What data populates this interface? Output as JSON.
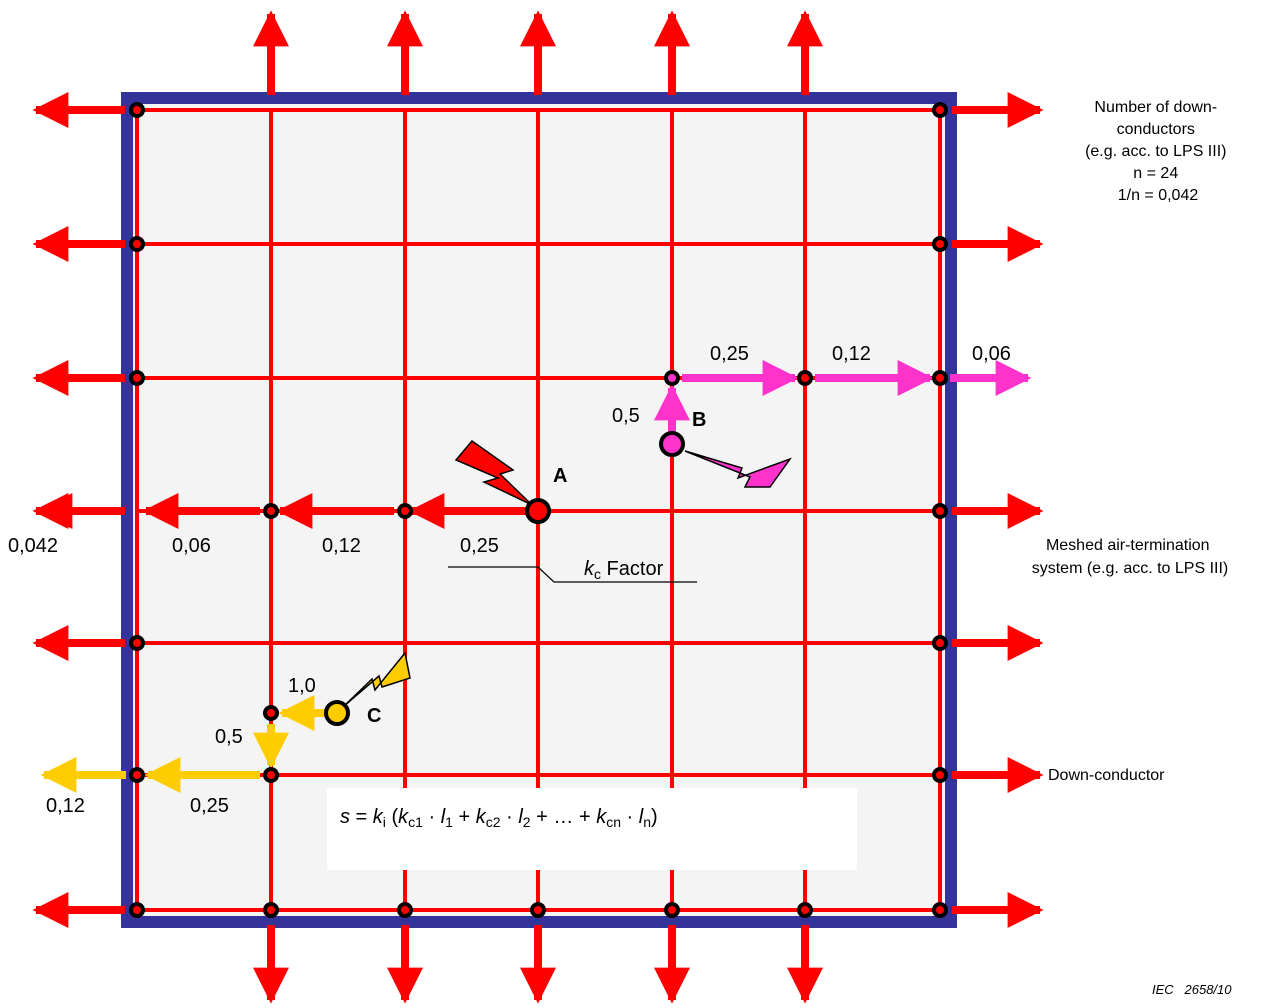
{
  "colors": {
    "roof_fill": "#f4f4f4",
    "roof_border": "#333399",
    "conductor": "#ff0000",
    "path_b": "#ff33cc",
    "path_c": "#ffcc00"
  },
  "notes": {
    "downconductors": [
      "Number of down-",
      "conductors",
      "(e.g. acc. to LPS III)",
      "n = 24",
      "1/n = 0,042"
    ],
    "meshed": [
      "Meshed air-termination",
      "system (e.g. acc. to LPS III)"
    ],
    "downconductor": "Down-conductor",
    "figure_ref": "IEC   2658/10"
  },
  "points": {
    "a": "A",
    "b": "B",
    "c": "C"
  },
  "path_a_values": {
    "v1": "0,25",
    "v2": "0,12",
    "v3": "0,06",
    "v4": "0,042"
  },
  "path_b_values": {
    "v0": "0,5",
    "v1": "0,25",
    "v2": "0,12",
    "v3": "0,06"
  },
  "path_c_values": {
    "v0": "1,0",
    "v1": "0,5",
    "v2": "0,25",
    "v3": "0,12"
  },
  "factor": {
    "k": "k",
    "sub": "c",
    "text": " Factor"
  },
  "formula": {
    "s": "s",
    "eq": " = ",
    "k": "k",
    "i": "i",
    "open": " (",
    "k1": "k",
    "c1": "c1",
    "dot1": " · ",
    "l1": "l",
    "n1": "1",
    "plus1": " + ",
    "k2": "k",
    "c2": "c2",
    "dot2": " · ",
    "l2": "l",
    "n2": "2",
    "plus2": " + … + ",
    "kn": "k",
    "cn": "cn",
    "dotn": " · ",
    "ln": "l",
    "nn": "n",
    "close": ")"
  }
}
